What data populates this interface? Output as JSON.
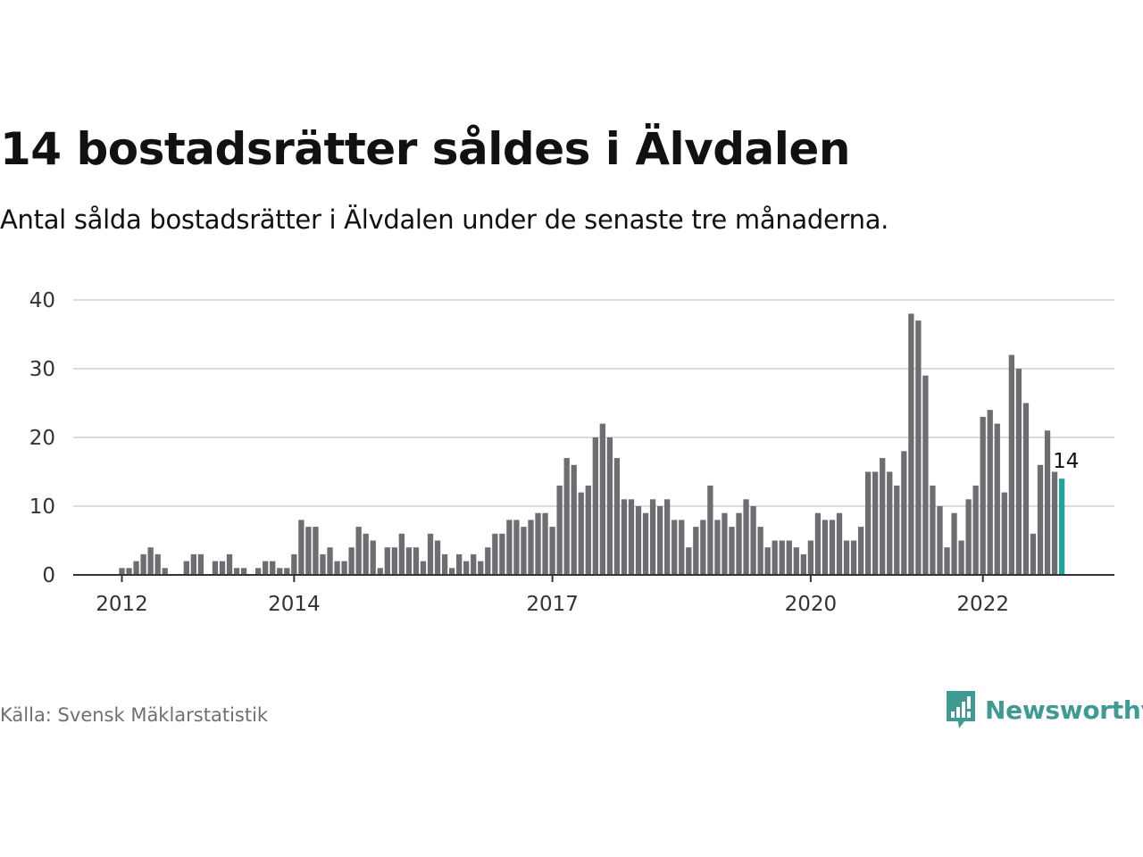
{
  "header": {
    "title": "14 bostadsrätter såldes i Älvdalen",
    "subtitle": "Antal sålda bostadsrätter i Älvdalen under de senaste tre månaderna."
  },
  "footer": {
    "source": "Källa: Svensk Mäklarstatistik",
    "brand": "Newsworthy",
    "brand_icon": "bar-chart-speech-bubble-icon"
  },
  "colors": {
    "bar": "#6e6e72",
    "highlight": "#21a39c",
    "brand": "#3f9a93",
    "grid": "#dcdcdc",
    "axis": "#333333"
  },
  "chart_data": {
    "type": "bar",
    "title": "14 bostadsrätter såldes i Älvdalen",
    "subtitle": "Antal sålda bostadsrätter i Älvdalen under de senaste tre månaderna.",
    "xlabel": "",
    "ylabel": "",
    "ylim": [
      0,
      40
    ],
    "yticks": [
      0,
      10,
      20,
      30,
      40
    ],
    "xticks": [
      {
        "label": "2012",
        "index": 0
      },
      {
        "label": "2014",
        "index": 24
      },
      {
        "label": "2017",
        "index": 60
      },
      {
        "label": "2020",
        "index": 96
      },
      {
        "label": "2022",
        "index": 120
      }
    ],
    "grid": true,
    "highlight_last": true,
    "annotation": {
      "text": "14",
      "index": 131
    },
    "values": [
      1,
      1,
      2,
      3,
      4,
      3,
      1,
      0,
      0,
      2,
      3,
      3,
      0,
      2,
      2,
      3,
      1,
      1,
      0,
      1,
      2,
      2,
      1,
      1,
      3,
      8,
      7,
      7,
      3,
      4,
      2,
      2,
      4,
      7,
      6,
      5,
      1,
      4,
      4,
      6,
      4,
      4,
      2,
      6,
      5,
      3,
      1,
      3,
      2,
      3,
      2,
      4,
      6,
      6,
      8,
      8,
      7,
      8,
      9,
      9,
      7,
      13,
      17,
      16,
      12,
      13,
      20,
      22,
      20,
      17,
      11,
      11,
      10,
      9,
      11,
      10,
      11,
      8,
      8,
      4,
      7,
      8,
      13,
      8,
      9,
      7,
      9,
      11,
      10,
      7,
      4,
      5,
      5,
      5,
      4,
      3,
      5,
      9,
      8,
      8,
      9,
      5,
      5,
      7,
      15,
      15,
      17,
      15,
      13,
      18,
      38,
      37,
      29,
      13,
      10,
      4,
      9,
      5,
      11,
      13,
      23,
      24,
      22,
      12,
      32,
      30,
      25,
      6,
      16,
      21,
      15,
      14
    ]
  }
}
